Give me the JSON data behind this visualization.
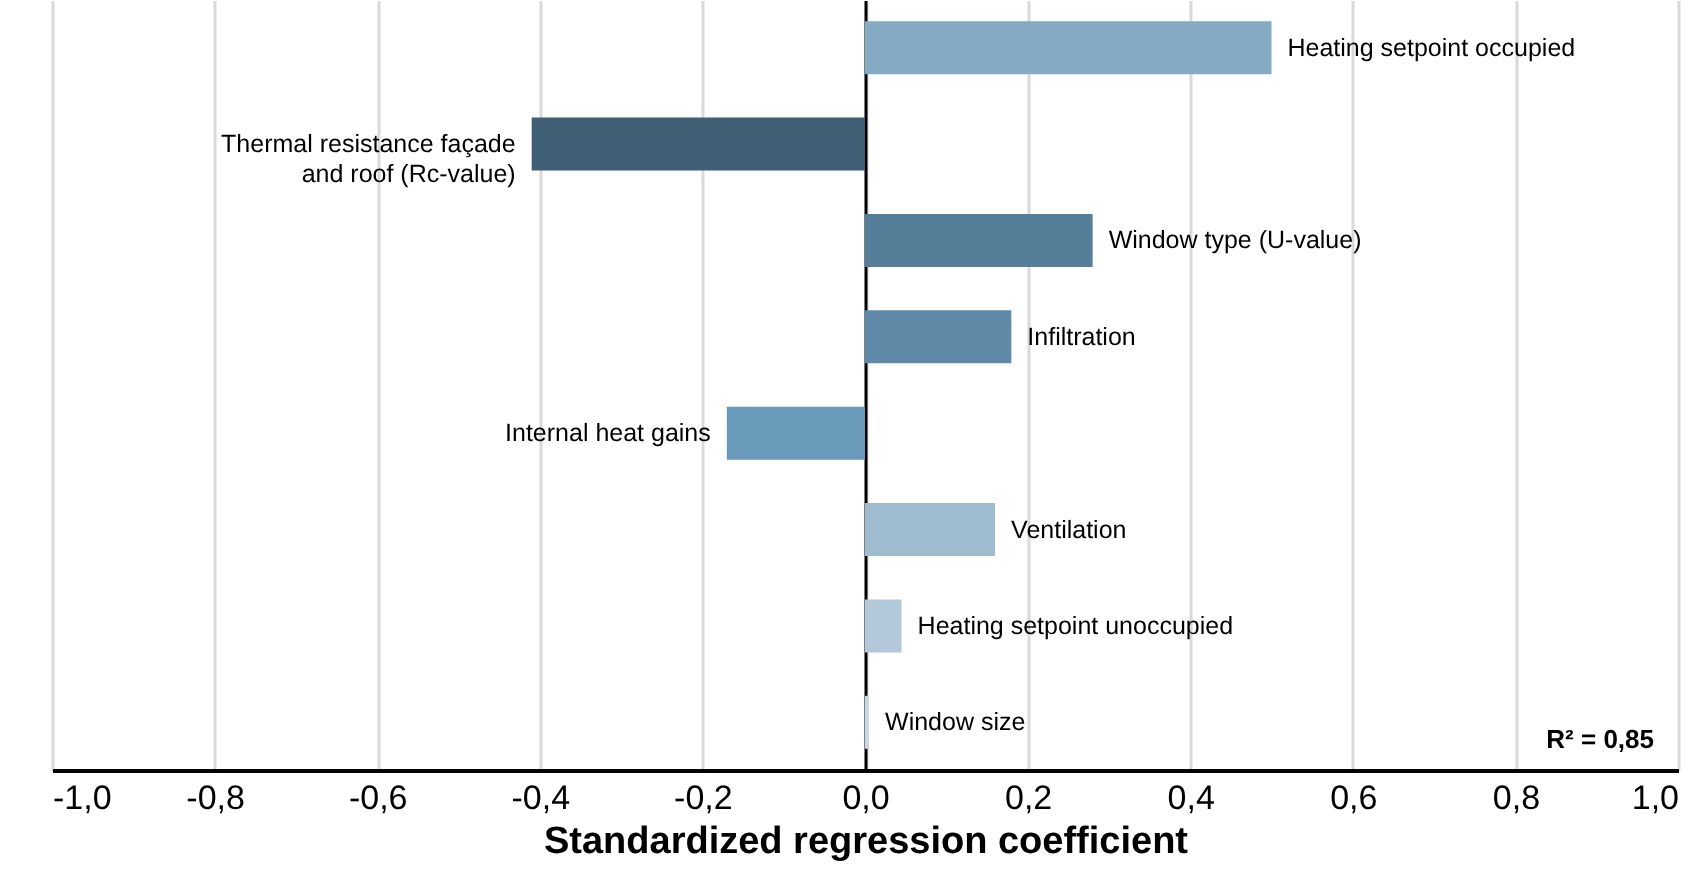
{
  "chart_data": {
    "type": "bar",
    "orientation": "horizontal",
    "xlabel": "Standardized regression coefficient",
    "categories": [
      "Heating setpoint occupied",
      "Thermal resistance façade and roof (Rc-value)",
      "Window type (U-value)",
      "Infiltration",
      "Internal heat gains",
      "Ventilation",
      "Heating setpoint unoccupied",
      "Window size"
    ],
    "values": [
      0.5,
      -0.41,
      0.28,
      0.18,
      -0.17,
      0.16,
      0.045,
      0.005
    ],
    "colors": [
      "#85aac4",
      "#3f5f74",
      "#557f99",
      "#5e8aa7",
      "#6a9aba",
      "#9fbbcf",
      "#b3c9d9",
      "#c8d8e4"
    ],
    "xlim": [
      -1,
      1
    ],
    "xticks": [
      {
        "value": -1,
        "label": "-1,0"
      },
      {
        "value": -0.8,
        "label": "-0,8"
      },
      {
        "value": -0.6,
        "label": "-0,6"
      },
      {
        "value": -0.4,
        "label": "-0,4"
      },
      {
        "value": -0.2,
        "label": "-0,2"
      },
      {
        "value": 0,
        "label": "0,0"
      },
      {
        "value": 0.2,
        "label": "0,2"
      },
      {
        "value": 0.4,
        "label": "0,4"
      },
      {
        "value": 0.6,
        "label": "0,6"
      },
      {
        "value": 0.8,
        "label": "0,8"
      },
      {
        "value": 1,
        "label": "1,0"
      }
    ],
    "grid": "x",
    "tick_labels": "x",
    "annotations": [
      "R² = 0,85"
    ]
  }
}
